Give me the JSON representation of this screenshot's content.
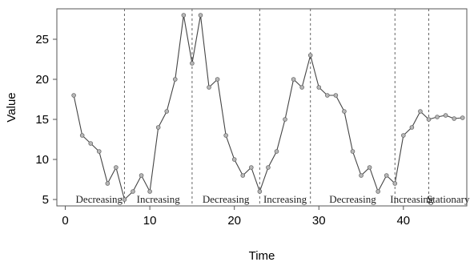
{
  "chart_data": {
    "type": "line",
    "xlabel": "Time",
    "ylabel": "Value",
    "xlim": [
      -1,
      47.5
    ],
    "ylim": [
      4.2,
      28.8
    ],
    "xticks": [
      0,
      10,
      20,
      30,
      40
    ],
    "yticks": [
      5,
      10,
      15,
      20,
      25
    ],
    "grid": false,
    "colors": {
      "line": "#444444",
      "marker_fill": "#b8b8b8",
      "boundary": "#666666"
    },
    "series": [
      {
        "x": [
          1,
          2,
          3,
          4,
          5,
          6,
          7,
          8,
          9,
          10,
          11,
          12,
          13,
          14,
          15,
          16,
          17,
          18,
          19,
          20,
          21,
          22,
          23,
          24,
          25,
          26,
          27,
          28,
          29,
          30,
          31,
          32,
          33,
          34,
          35,
          36,
          37,
          38,
          39,
          40,
          41,
          42,
          43,
          44,
          45,
          46,
          47
        ],
        "values": [
          18,
          13,
          12,
          11,
          7,
          9,
          5,
          6,
          8,
          6,
          14,
          16,
          20,
          28,
          22,
          28,
          19,
          20,
          13,
          10,
          8,
          9,
          6,
          9,
          11,
          15,
          20,
          19,
          23,
          19,
          18,
          18,
          16,
          11,
          8,
          9,
          6,
          8,
          7,
          13,
          14,
          16,
          15,
          15.3,
          15.5,
          15.1,
          15.2
        ]
      }
    ],
    "boundaries": [
      7,
      15,
      23,
      29,
      39,
      43
    ],
    "segments": [
      {
        "label": "Decreasing",
        "x": 4.0
      },
      {
        "label": "Increasing",
        "x": 11.0
      },
      {
        "label": "Decreasing",
        "x": 19.0
      },
      {
        "label": "Increasing",
        "x": 26.0
      },
      {
        "label": "Decreasing",
        "x": 34.0
      },
      {
        "label": "Increasing",
        "x": 41.0
      },
      {
        "label": "Stationary",
        "x": 45.3
      }
    ]
  }
}
